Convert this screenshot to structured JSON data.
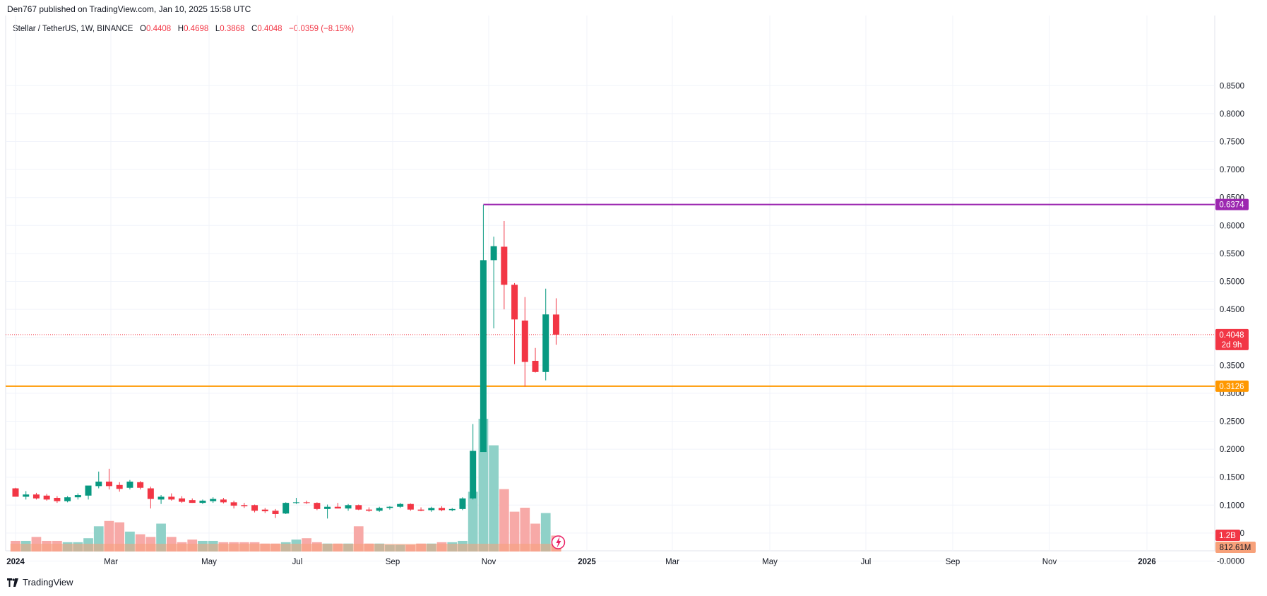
{
  "header": {
    "published": "Den767 published on TradingView.com, Jan 10, 2025 15:58 UTC"
  },
  "legend": {
    "symbol": "Stellar / TetherUS, 1W, BINANCE",
    "o_label": "O",
    "o_value": "0.4408",
    "h_label": "H",
    "h_value": "0.4698",
    "l_label": "L",
    "l_value": "0.3868",
    "c_label": "C",
    "c_value": "0.4048",
    "change": "−0.0359 (−8.15%)"
  },
  "footer": {
    "brand": "TradingView"
  },
  "colors": {
    "up": "#089981",
    "down": "#f23645",
    "resistance": "#9c27b0",
    "support": "#ff9800",
    "volUp": "#8fd1c8",
    "volDown": "#f7a9a7",
    "volAvg": "#f7a17a"
  },
  "chart_data": {
    "type": "candlestick",
    "interval": "1W",
    "y_ticks": [
      "0.8500",
      "0.8000",
      "0.7500",
      "0.7000",
      "0.6500",
      "0.6000",
      "0.5500",
      "0.5000",
      "0.4500",
      "0.4000",
      "0.3500",
      "0.3000",
      "0.2500",
      "0.2000",
      "0.1500",
      "0.1000",
      "0.0500",
      "-0.0000"
    ],
    "x_ticks": [
      "2024",
      "Mar",
      "May",
      "Jul",
      "Sep",
      "Nov",
      "2025",
      "Mar",
      "May",
      "Jul",
      "Sep",
      "Nov",
      "2026"
    ],
    "candles": [
      {
        "o": 0.13,
        "h": 0.131,
        "l": 0.119,
        "c": 0.115
      },
      {
        "o": 0.115,
        "h": 0.125,
        "l": 0.11,
        "c": 0.119
      },
      {
        "o": 0.119,
        "h": 0.122,
        "l": 0.11,
        "c": 0.112
      },
      {
        "o": 0.117,
        "h": 0.12,
        "l": 0.108,
        "c": 0.11
      },
      {
        "o": 0.113,
        "h": 0.116,
        "l": 0.104,
        "c": 0.107
      },
      {
        "o": 0.107,
        "h": 0.116,
        "l": 0.105,
        "c": 0.114
      },
      {
        "o": 0.114,
        "h": 0.121,
        "l": 0.11,
        "c": 0.118
      },
      {
        "o": 0.117,
        "h": 0.133,
        "l": 0.11,
        "c": 0.135
      },
      {
        "o": 0.134,
        "h": 0.16,
        "l": 0.13,
        "c": 0.142
      },
      {
        "o": 0.142,
        "h": 0.165,
        "l": 0.128,
        "c": 0.134
      },
      {
        "o": 0.136,
        "h": 0.141,
        "l": 0.124,
        "c": 0.129
      },
      {
        "o": 0.131,
        "h": 0.145,
        "l": 0.128,
        "c": 0.142
      },
      {
        "o": 0.141,
        "h": 0.143,
        "l": 0.128,
        "c": 0.131
      },
      {
        "o": 0.13,
        "h": 0.133,
        "l": 0.094,
        "c": 0.111
      },
      {
        "o": 0.11,
        "h": 0.118,
        "l": 0.102,
        "c": 0.115
      },
      {
        "o": 0.115,
        "h": 0.121,
        "l": 0.108,
        "c": 0.11
      },
      {
        "o": 0.112,
        "h": 0.116,
        "l": 0.104,
        "c": 0.106
      },
      {
        "o": 0.109,
        "h": 0.112,
        "l": 0.104,
        "c": 0.104
      },
      {
        "o": 0.104,
        "h": 0.11,
        "l": 0.102,
        "c": 0.108
      },
      {
        "o": 0.107,
        "h": 0.114,
        "l": 0.104,
        "c": 0.111
      },
      {
        "o": 0.11,
        "h": 0.113,
        "l": 0.103,
        "c": 0.105
      },
      {
        "o": 0.105,
        "h": 0.108,
        "l": 0.094,
        "c": 0.099
      },
      {
        "o": 0.1,
        "h": 0.104,
        "l": 0.095,
        "c": 0.098
      },
      {
        "o": 0.1,
        "h": 0.101,
        "l": 0.087,
        "c": 0.09
      },
      {
        "o": 0.092,
        "h": 0.095,
        "l": 0.086,
        "c": 0.089
      },
      {
        "o": 0.09,
        "h": 0.093,
        "l": 0.077,
        "c": 0.084
      },
      {
        "o": 0.085,
        "h": 0.105,
        "l": 0.084,
        "c": 0.104
      },
      {
        "o": 0.104,
        "h": 0.113,
        "l": 0.102,
        "c": 0.105
      },
      {
        "o": 0.105,
        "h": 0.108,
        "l": 0.102,
        "c": 0.104
      },
      {
        "o": 0.104,
        "h": 0.105,
        "l": 0.091,
        "c": 0.093
      },
      {
        "o": 0.093,
        "h": 0.101,
        "l": 0.076,
        "c": 0.097
      },
      {
        "o": 0.097,
        "h": 0.104,
        "l": 0.094,
        "c": 0.094
      },
      {
        "o": 0.094,
        "h": 0.102,
        "l": 0.09,
        "c": 0.1
      },
      {
        "o": 0.1,
        "h": 0.101,
        "l": 0.091,
        "c": 0.092
      },
      {
        "o": 0.092,
        "h": 0.096,
        "l": 0.088,
        "c": 0.09
      },
      {
        "o": 0.09,
        "h": 0.097,
        "l": 0.088,
        "c": 0.095
      },
      {
        "o": 0.095,
        "h": 0.098,
        "l": 0.092,
        "c": 0.097
      },
      {
        "o": 0.097,
        "h": 0.104,
        "l": 0.095,
        "c": 0.102
      },
      {
        "o": 0.102,
        "h": 0.103,
        "l": 0.09,
        "c": 0.092
      },
      {
        "o": 0.092,
        "h": 0.096,
        "l": 0.089,
        "c": 0.09
      },
      {
        "o": 0.091,
        "h": 0.097,
        "l": 0.088,
        "c": 0.095
      },
      {
        "o": 0.095,
        "h": 0.098,
        "l": 0.089,
        "c": 0.091
      },
      {
        "o": 0.091,
        "h": 0.095,
        "l": 0.089,
        "c": 0.093
      },
      {
        "o": 0.093,
        "h": 0.114,
        "l": 0.091,
        "c": 0.112
      },
      {
        "o": 0.112,
        "h": 0.245,
        "l": 0.11,
        "c": 0.197
      },
      {
        "o": 0.195,
        "h": 0.637,
        "l": 0.195,
        "c": 0.538
      },
      {
        "o": 0.538,
        "h": 0.58,
        "l": 0.416,
        "c": 0.563
      },
      {
        "o": 0.562,
        "h": 0.608,
        "l": 0.45,
        "c": 0.494
      },
      {
        "o": 0.494,
        "h": 0.497,
        "l": 0.352,
        "c": 0.432
      },
      {
        "o": 0.43,
        "h": 0.472,
        "l": 0.312,
        "c": 0.356
      },
      {
        "o": 0.358,
        "h": 0.381,
        "l": 0.337,
        "c": 0.338
      },
      {
        "o": 0.338,
        "h": 0.487,
        "l": 0.323,
        "c": 0.441
      },
      {
        "o": 0.4408,
        "h": 0.4698,
        "l": 0.3868,
        "c": 0.4048
      }
    ],
    "volume_pct": [
      8,
      8,
      11,
      8,
      8,
      7,
      7,
      10,
      19,
      23,
      22,
      15,
      13,
      11,
      21,
      11,
      7,
      9,
      8,
      8,
      7,
      7,
      7,
      7,
      6,
      6,
      7,
      9,
      10,
      7,
      6,
      6,
      6,
      19,
      6,
      6,
      5,
      5,
      5,
      6,
      6,
      7,
      7,
      8,
      45,
      100,
      80,
      47,
      30,
      33,
      21,
      29,
      12
    ],
    "resistance": 0.6374,
    "support": 0.3126,
    "current_price": 0.4048,
    "price_labels": {
      "resistance": "0.6374",
      "current": "0.4048",
      "countdown": "2d 9h",
      "support": "0.3126"
    },
    "volume_labels": {
      "vol": "1.2B",
      "vol_ma": "812.61M"
    }
  }
}
